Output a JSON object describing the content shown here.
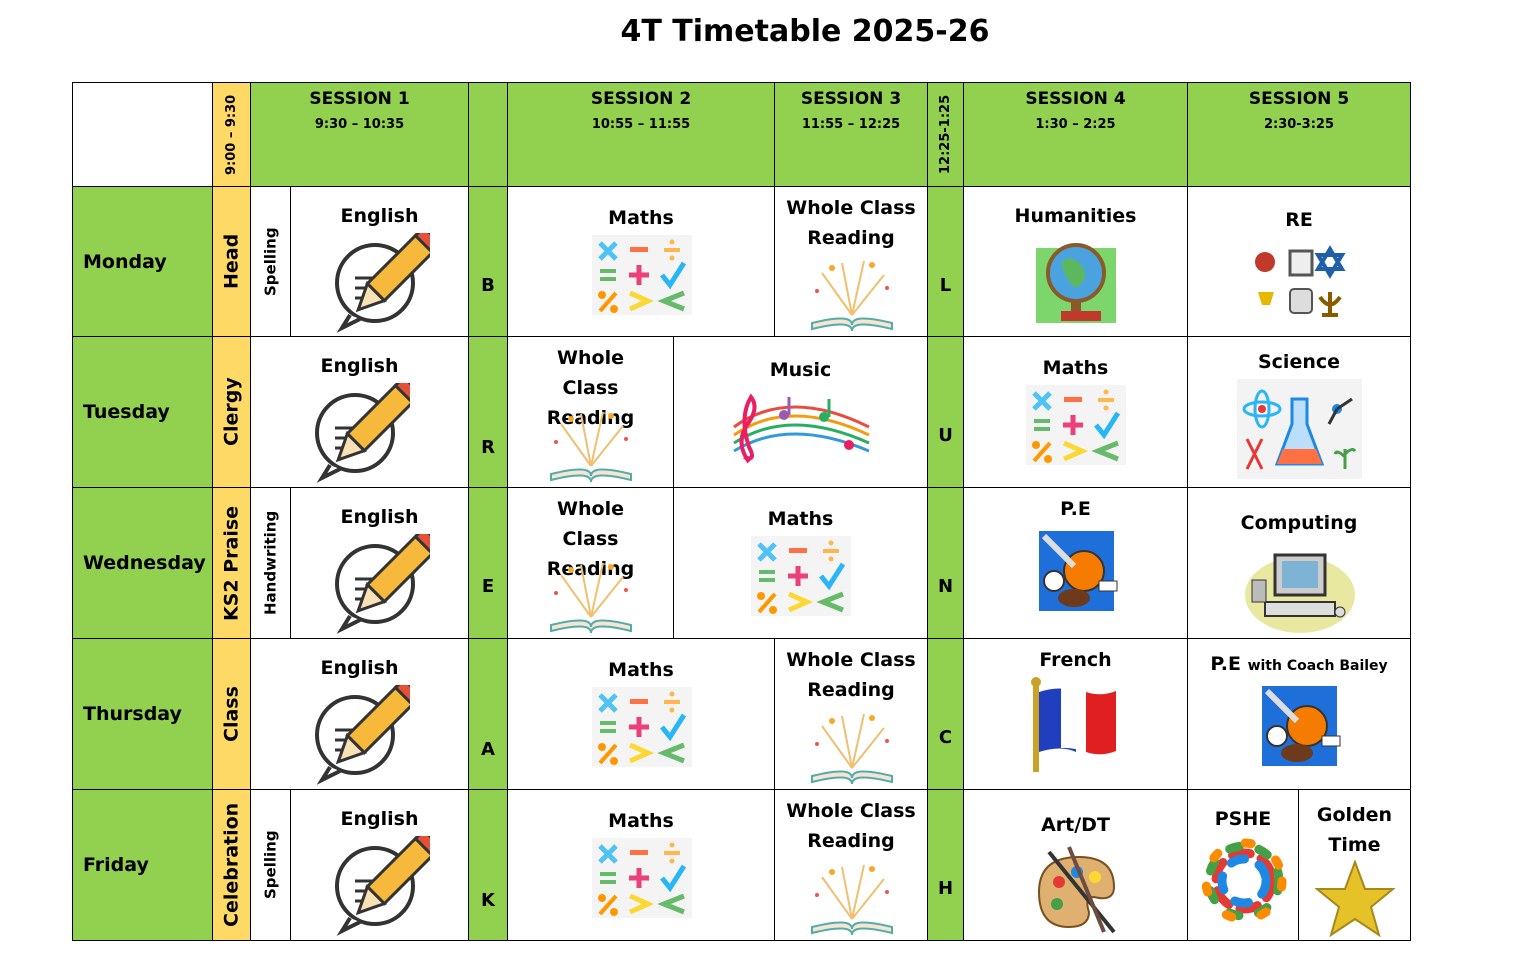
{
  "title": "4T Timetable 2025-26",
  "header": {
    "registration": "9:00 – 9:30",
    "sessions": [
      {
        "name": "SESSION 1",
        "time": "9:30 – 10:35"
      },
      {
        "name": "SESSION 2",
        "time": "10:55 – 11:55"
      },
      {
        "name": "SESSION 3",
        "time": "11:55 – 12:25"
      },
      {
        "name": "SESSION 4",
        "time": "1:30 – 2:25"
      },
      {
        "name": "SESSION 5",
        "time": "2:30-3:25"
      }
    ],
    "lunch": "12:25-1:25"
  },
  "rows": [
    {
      "day": "Monday",
      "assembly": "Head",
      "extra": "Spelling",
      "cells": [
        "English",
        "B",
        "Maths",
        "Whole Class Reading",
        "L",
        "Humanities",
        "RE"
      ]
    },
    {
      "day": "Tuesday",
      "assembly": "Clergy",
      "cells": [
        "English",
        "R",
        "Whole Class Reading",
        "Music",
        "U",
        "Maths",
        "Science"
      ]
    },
    {
      "day": "Wednesday",
      "assembly": "KS2 Praise",
      "extra": "Handwriting",
      "cells": [
        "English",
        "E",
        "Whole Class Reading",
        "Maths",
        "N",
        "P.E",
        "Computing"
      ]
    },
    {
      "day": "Thursday",
      "assembly": "Class",
      "cells": [
        "English",
        "A",
        "Maths",
        "Whole Class Reading",
        "C",
        "French",
        {
          "text": "P.E",
          "note": "with Coach Bailey"
        }
      ]
    },
    {
      "day": "Friday",
      "assembly": "Celebration",
      "extra": "Spelling",
      "cells": [
        "English",
        "K",
        "Maths",
        "Whole Class Reading",
        "H",
        "Art/DT",
        "PSHE",
        "Golden Time"
      ]
    }
  ]
}
